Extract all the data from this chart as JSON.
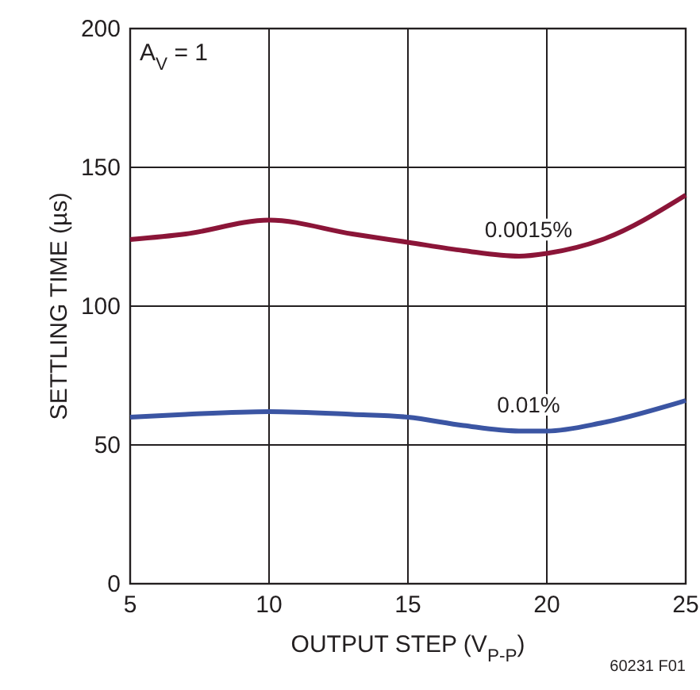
{
  "chart_data": {
    "type": "line",
    "xlabel": "OUTPUT STEP (V$_{P-P}$)",
    "ylabel": "SETTLING TIME (µs)",
    "x": [
      5,
      7,
      10,
      13,
      15,
      17,
      19,
      20,
      22,
      25
    ],
    "series": [
      {
        "name": "0.0015%",
        "color": "#8b1538",
        "values": [
          124,
          126,
          131,
          126,
          123,
          120,
          118,
          119,
          124,
          140
        ]
      },
      {
        "name": "0.01%",
        "color": "#3b55a3",
        "values": [
          60,
          61,
          62,
          61,
          60,
          57,
          55,
          55,
          58,
          66
        ]
      }
    ],
    "xlim": [
      5,
      25
    ],
    "xticks": [
      5,
      10,
      15,
      20,
      25
    ],
    "ylim": [
      0,
      200
    ],
    "yticks": [
      0,
      50,
      100,
      150,
      200
    ],
    "grid": true,
    "marker": "none",
    "line_style": "solid",
    "annotations": [
      "A$_{V}$ = 1",
      "60231 F01"
    ]
  }
}
